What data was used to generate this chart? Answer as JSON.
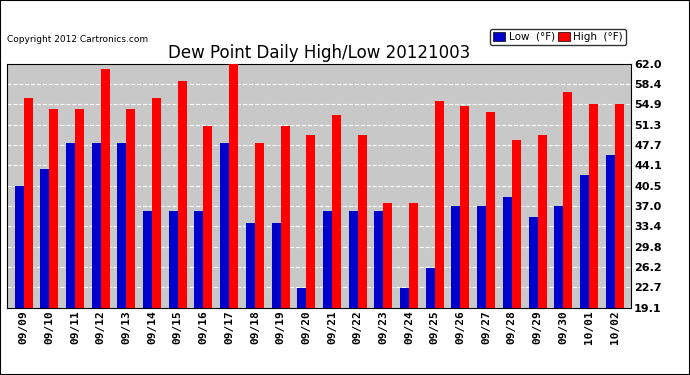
{
  "title": "Dew Point Daily High/Low 20121003",
  "copyright": "Copyright 2012 Cartronics.com",
  "legend_low": "Low  (°F)",
  "legend_high": "High  (°F)",
  "dates": [
    "09/09",
    "09/10",
    "09/11",
    "09/12",
    "09/13",
    "09/14",
    "09/15",
    "09/16",
    "09/17",
    "09/18",
    "09/19",
    "09/20",
    "09/21",
    "09/22",
    "09/23",
    "09/24",
    "09/25",
    "09/26",
    "09/27",
    "09/28",
    "09/29",
    "09/30",
    "10/01",
    "10/02"
  ],
  "high": [
    56.0,
    54.0,
    54.0,
    61.0,
    54.0,
    56.0,
    59.0,
    51.0,
    62.0,
    48.0,
    51.0,
    49.5,
    53.0,
    49.5,
    37.5,
    37.5,
    55.5,
    54.5,
    53.5,
    48.5,
    49.5,
    57.0,
    55.0,
    55.0
  ],
  "low": [
    40.5,
    43.5,
    48.0,
    48.0,
    48.0,
    36.0,
    36.0,
    36.0,
    48.0,
    34.0,
    34.0,
    22.5,
    36.0,
    36.0,
    36.0,
    22.5,
    26.0,
    37.0,
    37.0,
    38.5,
    35.0,
    37.0,
    42.5,
    46.0
  ],
  "ylim": [
    19.1,
    62.0
  ],
  "yticks": [
    19.1,
    22.7,
    26.2,
    29.8,
    33.4,
    37.0,
    40.5,
    44.1,
    47.7,
    51.3,
    54.9,
    58.4,
    62.0
  ],
  "bar_color_high": "#FF0000",
  "bar_color_low": "#0000CD",
  "background_color": "#FFFFFF",
  "plot_background": "#C8C8C8",
  "grid_color": "#FFFFFF",
  "title_fontsize": 12,
  "tick_fontsize": 8,
  "bar_width": 0.35,
  "outer_border_color": "#000000",
  "fig_width": 6.9,
  "fig_height": 3.75
}
